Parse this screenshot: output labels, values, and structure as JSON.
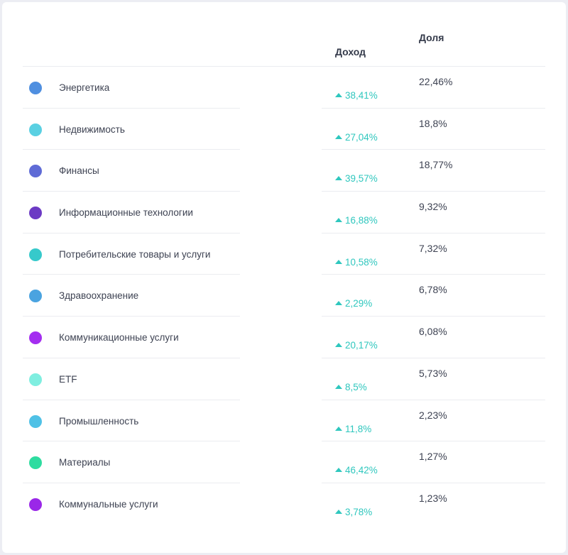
{
  "table": {
    "columns": {
      "income": "Доход",
      "share": "Доля"
    },
    "rows": [
      {
        "name": "Энергетика",
        "income": "38,41%",
        "share": "22,46%",
        "color": "#4f8fe0"
      },
      {
        "name": "Недвижимость",
        "income": "27,04%",
        "share": "18,8%",
        "color": "#5ad0e2"
      },
      {
        "name": "Финансы",
        "income": "39,57%",
        "share": "18,77%",
        "color": "#5f6bd6"
      },
      {
        "name": "Информационные технологии",
        "income": "16,88%",
        "share": "9,32%",
        "color": "#6c3ac4"
      },
      {
        "name": "Потребительские товары и услуги",
        "income": "10,58%",
        "share": "7,32%",
        "color": "#36c9cb"
      },
      {
        "name": "Здравоохранение",
        "income": "2,29%",
        "share": "6,78%",
        "color": "#4aa3e0"
      },
      {
        "name": "Коммуникационные услуги",
        "income": "20,17%",
        "share": "6,08%",
        "color": "#a42ef0"
      },
      {
        "name": "ETF",
        "income": "8,5%",
        "share": "5,73%",
        "color": "#7feee0"
      },
      {
        "name": "Промышленность",
        "income": "11,8%",
        "share": "2,23%",
        "color": "#4fc1e6"
      },
      {
        "name": "Материалы",
        "income": "46,42%",
        "share": "1,27%",
        "color": "#2edca0"
      },
      {
        "name": "Коммунальные услуги",
        "income": "3,78%",
        "share": "1,23%",
        "color": "#9a27e8"
      }
    ]
  },
  "icons": {
    "trend": "arrow-up-icon"
  }
}
